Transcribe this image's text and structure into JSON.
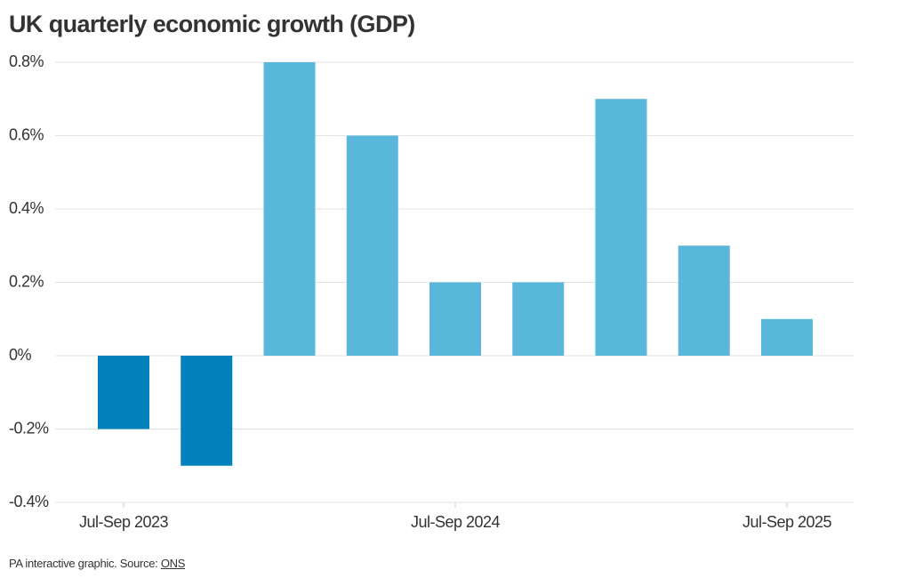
{
  "chart_data": {
    "type": "bar",
    "title": "UK quarterly economic growth (GDP)",
    "categories": [
      "Jul-Sep 2023",
      null,
      null,
      null,
      "Jul-Sep 2024",
      null,
      null,
      null,
      "Jul-Sep 2025"
    ],
    "values": [
      -0.2,
      -0.3,
      0.8,
      0.6,
      0.2,
      0.2,
      0.7,
      0.3,
      0.1
    ],
    "colors": [
      "#0081bc",
      "#0081bc",
      "#5ab7dc",
      "#5ab7dc",
      "#5ab7dc",
      "#5ab7dc",
      "#5ab7dc",
      "#5ab7dc",
      "#5ab7dc"
    ],
    "ylim": [
      -0.4,
      0.8
    ],
    "yticks": [
      {
        "value": -0.4,
        "label": "-0.4%"
      },
      {
        "value": -0.2,
        "label": "-0.2%"
      },
      {
        "value": 0,
        "label": "0%"
      },
      {
        "value": 0.2,
        "label": "0.2%"
      },
      {
        "value": 0.4,
        "label": "0.4%"
      },
      {
        "value": 0.6,
        "label": "0.6%"
      },
      {
        "value": 0.8,
        "label": "0.8%"
      }
    ],
    "grid": true,
    "footer": {
      "text": "PA interactive graphic. Source:",
      "link": "ONS"
    }
  }
}
